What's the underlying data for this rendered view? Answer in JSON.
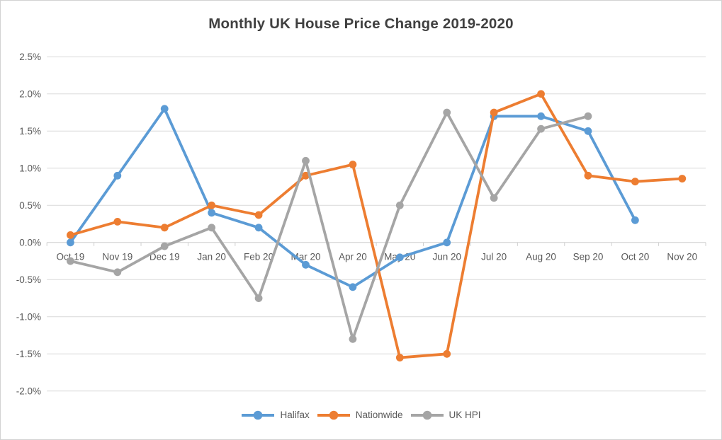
{
  "title": "Monthly UK House Price Change 2019-2020",
  "chart_data": {
    "type": "line",
    "title": "Monthly UK House Price Change 2019-2020",
    "categories": [
      "Oct 19",
      "Nov 19",
      "Dec 19",
      "Jan 20",
      "Feb 20",
      "Mar 20",
      "Apr 20",
      "May 20",
      "Jun 20",
      "Jul 20",
      "Aug 20",
      "Sep 20",
      "Oct 20",
      "Nov 20"
    ],
    "series": [
      {
        "name": "Halifax",
        "color": "#5B9BD5",
        "values": [
          0.0,
          0.9,
          1.8,
          0.4,
          0.2,
          -0.3,
          -0.6,
          -0.2,
          0.0,
          1.7,
          1.7,
          1.5,
          0.3,
          null
        ]
      },
      {
        "name": "Nationwide",
        "color": "#ED7D31",
        "values": [
          0.1,
          0.28,
          0.2,
          0.5,
          0.37,
          0.9,
          1.05,
          -1.55,
          -1.5,
          1.75,
          2.0,
          0.9,
          0.82,
          0.86
        ]
      },
      {
        "name": "UK HPI",
        "color": "#A5A5A5",
        "values": [
          -0.25,
          -0.4,
          -0.05,
          0.2,
          -0.75,
          1.1,
          -1.3,
          0.5,
          1.75,
          0.6,
          1.53,
          1.7,
          null,
          null
        ]
      }
    ],
    "y_axis": {
      "min": -2.0,
      "max": 2.5,
      "step": 0.5,
      "tick_labels": [
        "2.5%",
        "2.0%",
        "1.5%",
        "1.0%",
        "0.5%",
        "0.0%",
        "-0.5%",
        "-1.0%",
        "-1.5%",
        "-2.0%"
      ]
    },
    "xlabel": "",
    "ylabel": "",
    "grid": true,
    "legend_position": "bottom"
  },
  "colors": {
    "halifax": "#5B9BD5",
    "nationwide": "#ED7D31",
    "uk_hpi": "#A5A5A5",
    "gridline": "#D9D9D9",
    "axis": "#CFCFCF",
    "tick_text": "#595959",
    "title_text": "#404040",
    "background": "#FFFFFF"
  }
}
